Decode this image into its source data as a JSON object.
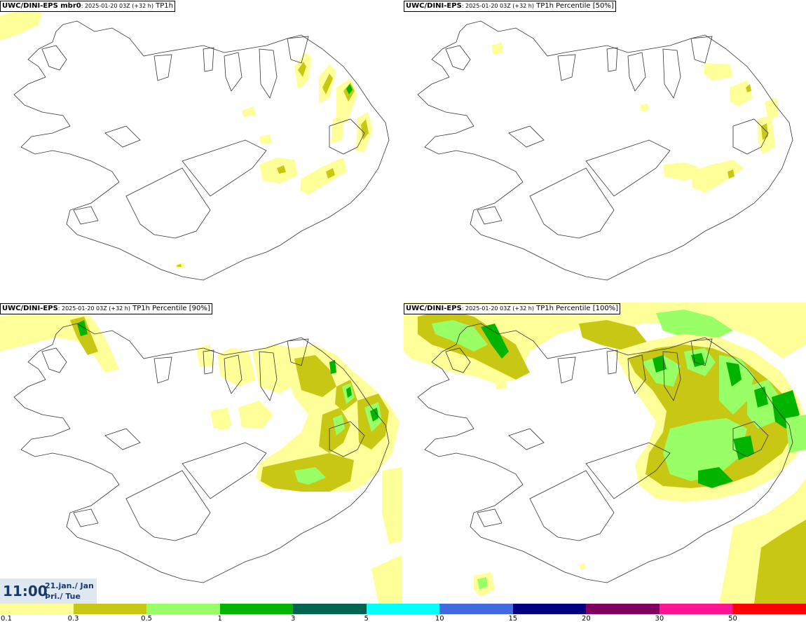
{
  "panels": [
    {
      "model": "UWC/DINI-EPS mbr0",
      "run": ": 2025-01-20 03Z (+32 h)",
      "field": " TP1h"
    },
    {
      "model": "UWC/DINI-EPS",
      "run": ": 2025-01-20 03Z (+32 h)",
      "field": " TP1h Percentile [50%]"
    },
    {
      "model": "UWC/DINI-EPS",
      "run": ": 2025-01-20 03Z (+32 h)",
      "field": " TP1h Percentile [90%]"
    },
    {
      "model": "UWC/DINI-EPS",
      "run": ": 2025-01-20 03Z (+32 h)",
      "field": " TP1h Percentile [100%]"
    }
  ],
  "time": {
    "clock": "11:00",
    "date_line1": "21.jan./ Jan",
    "date_line2": "Þri./ Tue"
  },
  "legend": {
    "labels": [
      "0.1",
      "0.3",
      "0.5",
      "1",
      "3",
      "5",
      "10",
      "15",
      "20",
      "30",
      "50"
    ],
    "colors": [
      "#ffff99",
      "#c8c814",
      "#99ff66",
      "#00b400",
      "#006450",
      "#00ffff",
      "#4169e1",
      "#000080",
      "#800060",
      "#ff1493",
      "#ff0000"
    ]
  },
  "map_colors": {
    "light_yellow": "#ffff99",
    "olive": "#c8c814",
    "light_green": "#99ff66",
    "green": "#00b400",
    "coast": "#333333"
  }
}
